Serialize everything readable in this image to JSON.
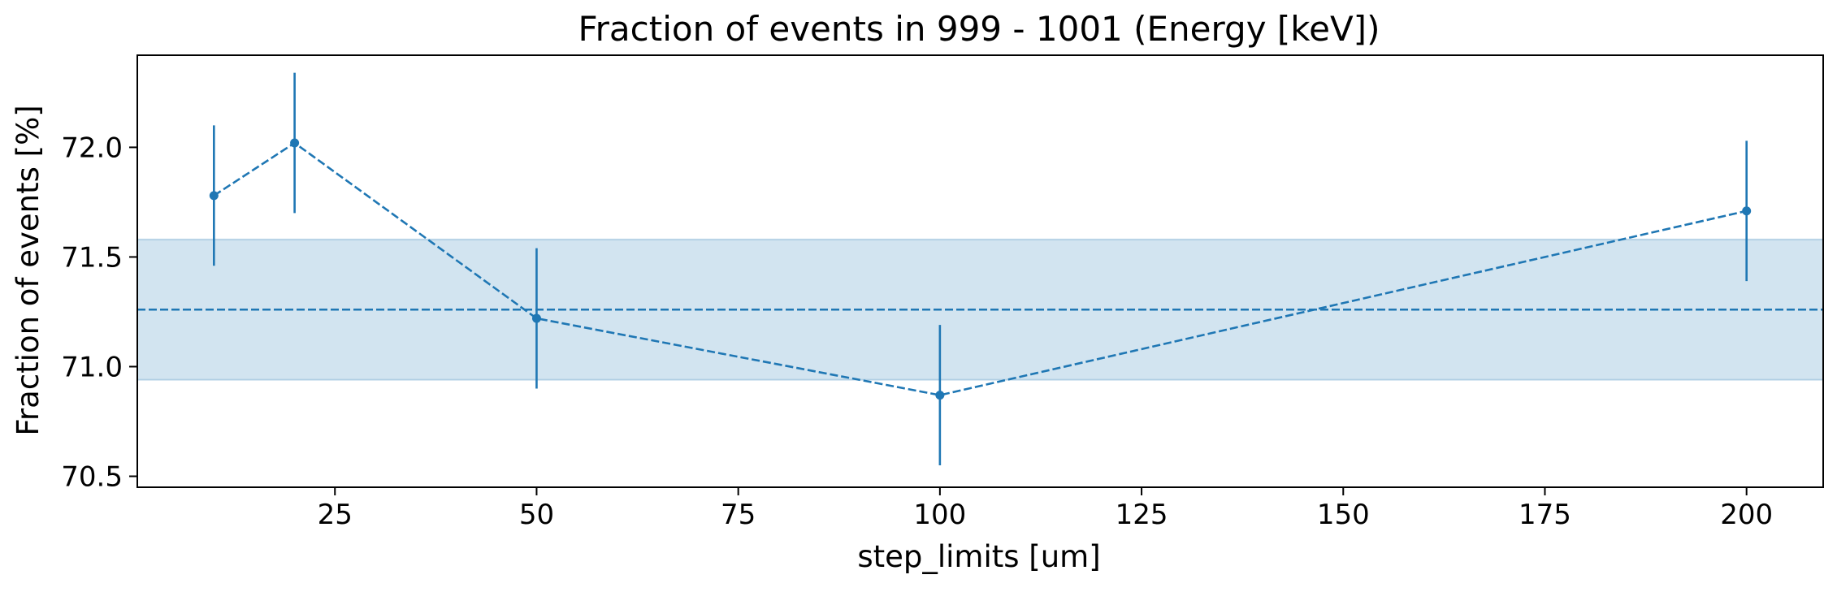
{
  "chart_data": {
    "type": "line",
    "title": "Fraction of events in 999 - 1001 (Energy [keV])",
    "xlabel": "step_limits [um]",
    "ylabel": "Fraction of events [%]",
    "xlim": [
      0.5,
      209.5
    ],
    "ylim": [
      70.45,
      72.42
    ],
    "x_ticks": [
      25,
      50,
      75,
      100,
      125,
      150,
      175,
      200
    ],
    "x_tick_labels": [
      "25",
      "50",
      "75",
      "100",
      "125",
      "150",
      "175",
      "200"
    ],
    "y_ticks": [
      70.5,
      71.0,
      71.5,
      72.0
    ],
    "y_tick_labels": [
      "70.5",
      "71.0",
      "71.5",
      "72.0"
    ],
    "grid": false,
    "series": [
      {
        "x": [
          10,
          20,
          50,
          100,
          200
        ],
        "y": [
          71.78,
          72.02,
          71.22,
          70.87,
          71.71
        ],
        "yerr": [
          0.32,
          0.32,
          0.32,
          0.32,
          0.32
        ],
        "color": "#1f77b4",
        "linestyle": "dashed",
        "marker": "circle"
      }
    ],
    "reference_line": {
      "y": 71.26,
      "color": "#1f77b4",
      "linestyle": "dashed"
    },
    "band": {
      "y_low": 70.94,
      "y_high": 71.58,
      "color": "#1f77b4",
      "opacity": 0.2
    }
  }
}
